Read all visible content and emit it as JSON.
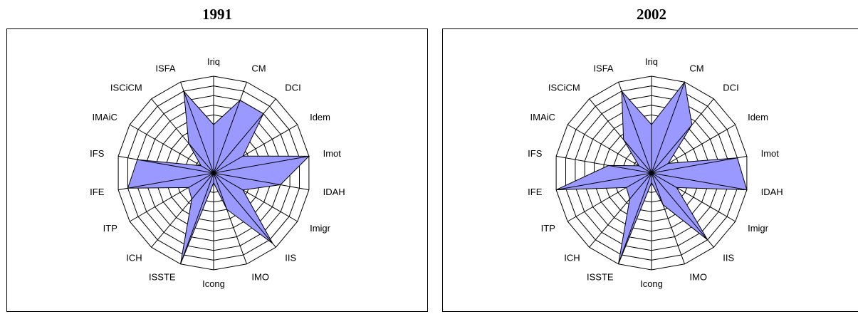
{
  "chart_data": [
    {
      "type": "radar",
      "title": "1991",
      "categories": [
        "Iriq",
        "CM",
        "DCI",
        "Idem",
        "Imot",
        "IDAH",
        "Imigr",
        "IIS",
        "IMO",
        "Icong",
        "ISSTE",
        "ICH",
        "ITP",
        "IFE",
        "IFS",
        "IMAiC",
        "ISCiCM",
        "ISFA"
      ],
      "values": [
        0.5,
        0.8,
        0.8,
        0.35,
        1.0,
        0.7,
        0.35,
        0.95,
        0.4,
        0.1,
        1.0,
        0.35,
        0.3,
        0.9,
        0.8,
        0.15,
        0.4,
        0.9
      ],
      "rlim": [
        0,
        1
      ],
      "rings": 10,
      "fill_color": "#9999ff",
      "grid": true,
      "legend": "none"
    },
    {
      "type": "radar",
      "title": "2002",
      "categories": [
        "Iriq",
        "CM",
        "DCI",
        "Idem",
        "Imot",
        "IDAH",
        "Imigr",
        "IIS",
        "IMO",
        "Icong",
        "ISSTE",
        "ICH",
        "ITP",
        "IFE",
        "IFS",
        "IMAiC",
        "ISCiCM",
        "ISFA"
      ],
      "values": [
        0.5,
        1.0,
        0.65,
        0.2,
        0.9,
        1.0,
        0.3,
        0.9,
        0.35,
        0.1,
        1.0,
        0.35,
        0.3,
        1.0,
        0.45,
        0.15,
        0.45,
        0.9
      ],
      "rlim": [
        0,
        1
      ],
      "rings": 10,
      "fill_color": "#9999ff",
      "grid": true,
      "legend": "none"
    }
  ]
}
